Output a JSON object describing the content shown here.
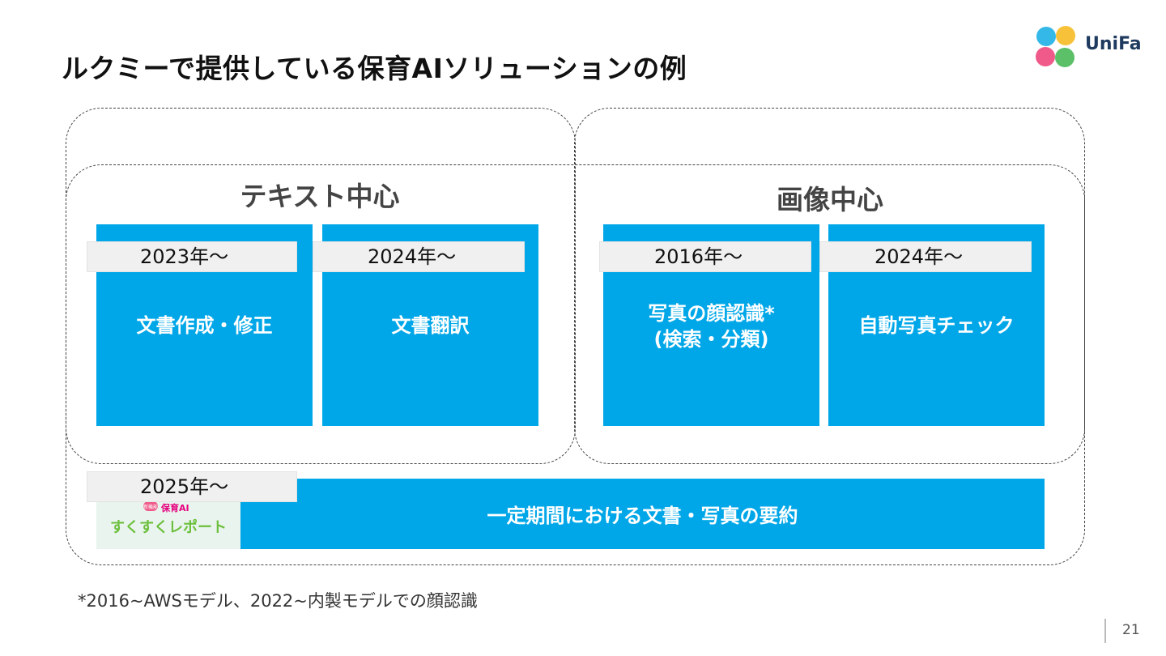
{
  "slide": {
    "title": "ルクミーで提供している保育AIソリューションの例",
    "logo_text": "UniFa",
    "page_number": "21",
    "footnote": "*2016~AWSモデル、2022~内製モデルでの顔認識"
  },
  "groups": {
    "text_focus": {
      "title": "テキスト中心"
    },
    "image_focus": {
      "title": "画像中心"
    }
  },
  "cards": [
    {
      "year": "2023年〜",
      "label_lines": [
        "文書作成・修正"
      ]
    },
    {
      "year": "2024年〜",
      "label_lines": [
        "文書翻訳"
      ]
    },
    {
      "year": "2016年〜",
      "label_lines": [
        "写真の顔認識*",
        "(検索・分類)"
      ]
    },
    {
      "year": "2024年〜",
      "label_lines": [
        "自動写真チェック"
      ]
    }
  ],
  "summary": {
    "year": "2025年〜",
    "label": "一定期間における文書・写真の要約",
    "badge_small": "保育AI",
    "badge_tag": "新機能",
    "badge_title": "すくすくレポート"
  },
  "colors": {
    "card_blue": "#00a7e8",
    "tag_gray": "#f0f0f0",
    "logo_dots": [
      "#34b8e8",
      "#f7c23a",
      "#ef5a8a",
      "#5cc068"
    ]
  },
  "icons": {
    "logo": "unifa-logo-dots"
  }
}
